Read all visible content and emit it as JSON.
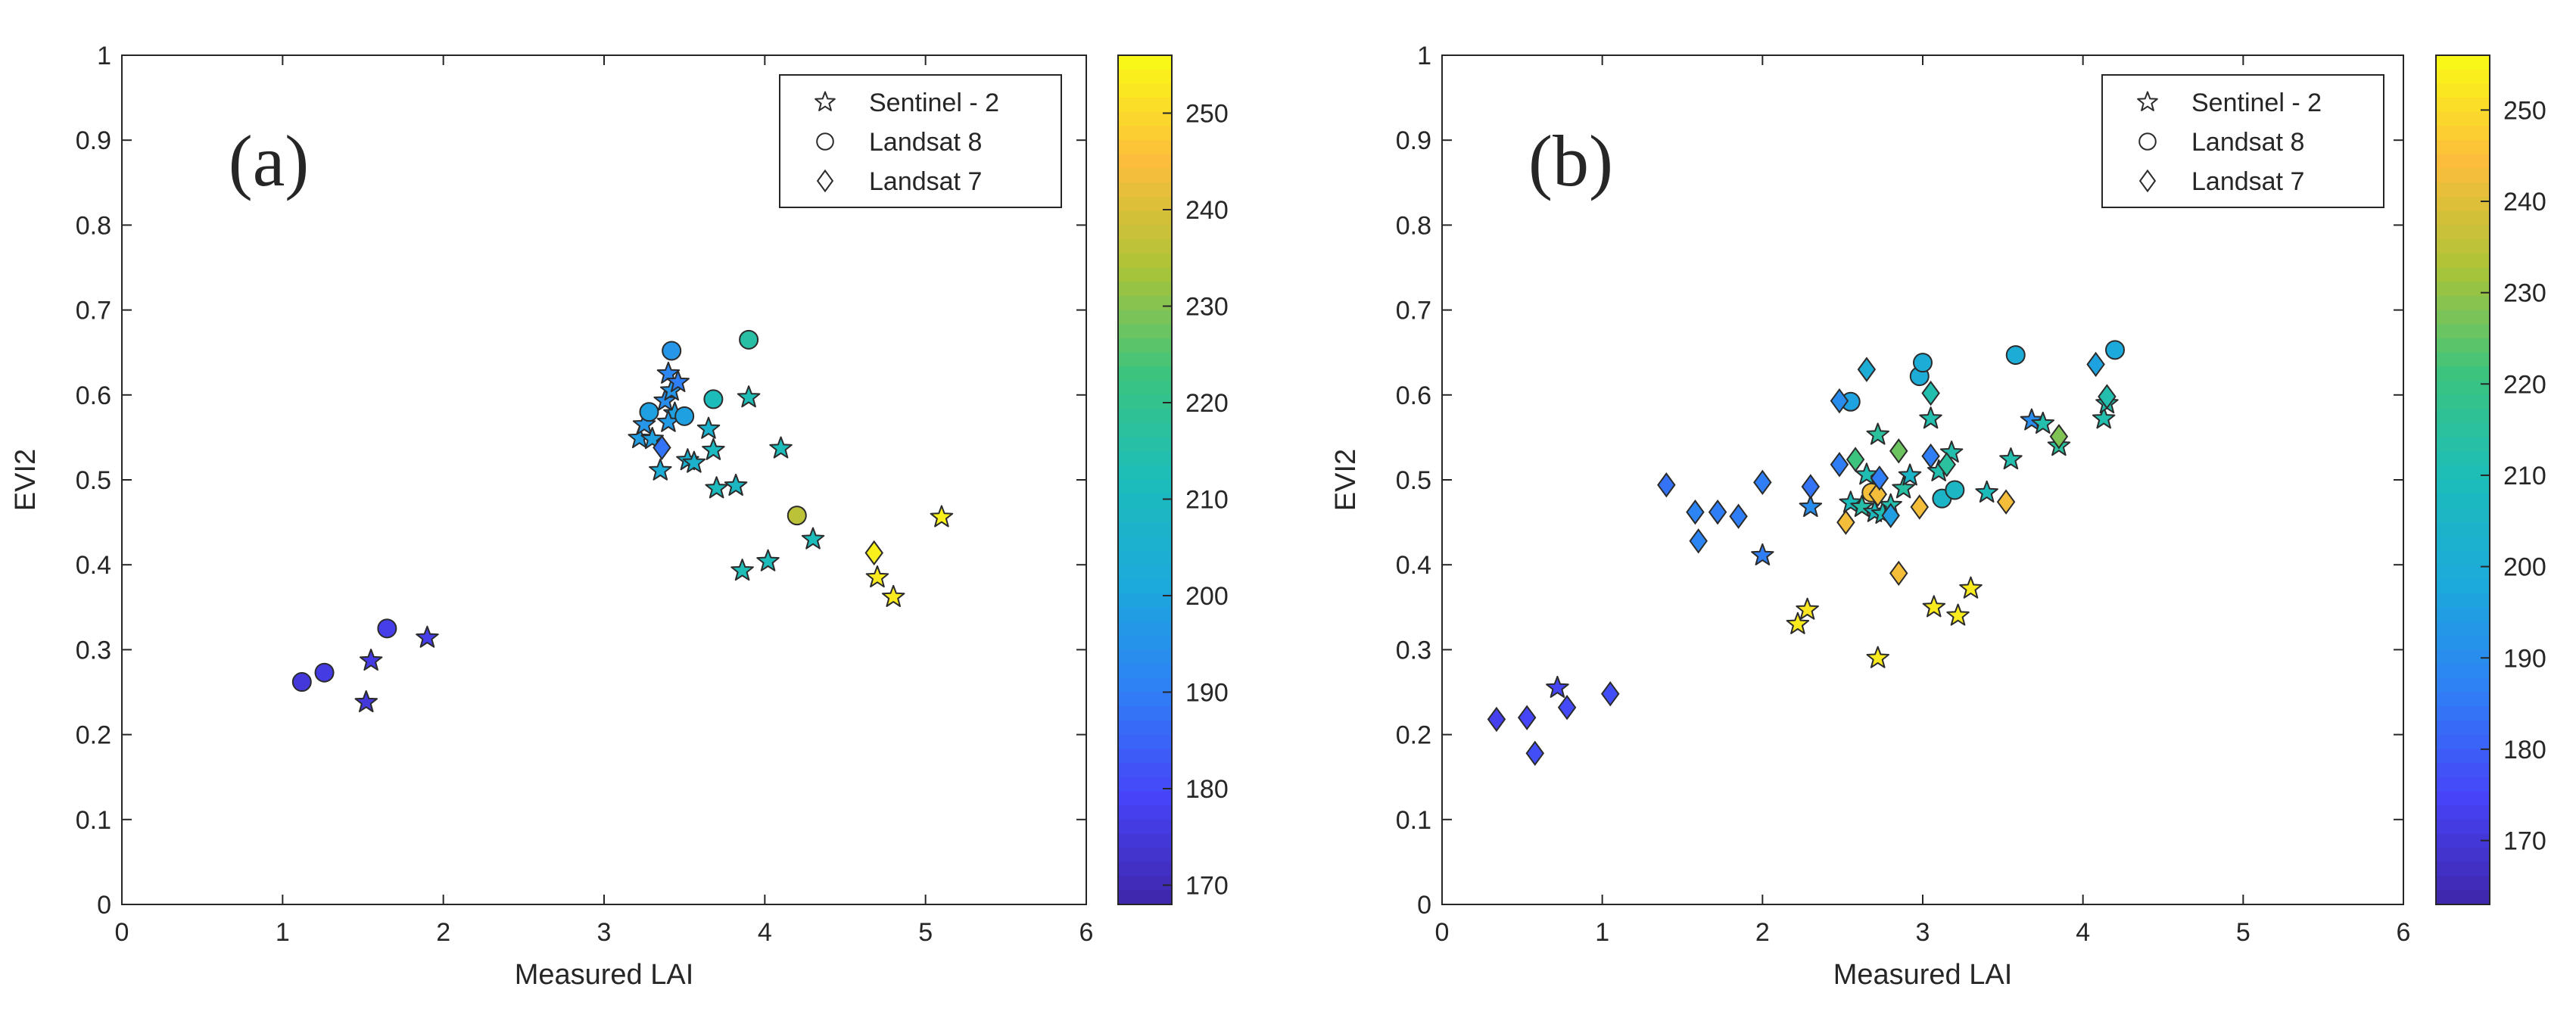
{
  "colors": {
    "colormap": [
      "#3e26a8",
      "#4743f8",
      "#2f7ff6",
      "#1ca9dc",
      "#1cbcba",
      "#3cc47e",
      "#aec337",
      "#fdbd3c",
      "#f9fb14"
    ],
    "marker_edge": "#2b2b2b",
    "axis": "#262626"
  },
  "chart_data": [
    {
      "type": "scatter",
      "panel_label": "(a)",
      "xlabel": "Measured LAI",
      "ylabel": "EVI2",
      "xlim": [
        0,
        6
      ],
      "ylim": [
        0,
        1
      ],
      "xticks": [
        "0",
        "1",
        "2",
        "3",
        "4",
        "5",
        "6"
      ],
      "yticks": [
        "0",
        "0.1",
        "0.2",
        "0.3",
        "0.4",
        "0.5",
        "0.6",
        "0.7",
        "0.8",
        "0.9",
        "1"
      ],
      "grid": false,
      "legend_position": "top-right",
      "colorbar": {
        "min": 168,
        "max": 256,
        "ticks": [
          "170",
          "180",
          "190",
          "200",
          "210",
          "220",
          "230",
          "240",
          "250"
        ]
      },
      "series": [
        {
          "name": "Sentinel - 2",
          "marker": "star",
          "points": [
            [
              1.52,
              0.238,
              175
            ],
            [
              1.55,
              0.287,
              176
            ],
            [
              1.9,
              0.314,
              177
            ],
            [
              3.22,
              0.549,
              198
            ],
            [
              3.25,
              0.565,
              196
            ],
            [
              3.3,
              0.548,
              199
            ],
            [
              3.35,
              0.511,
              203
            ],
            [
              3.38,
              0.593,
              194
            ],
            [
              3.4,
              0.625,
              192
            ],
            [
              3.42,
              0.605,
              196
            ],
            [
              3.44,
              0.578,
              199
            ],
            [
              3.46,
              0.615,
              190
            ],
            [
              3.4,
              0.568,
              197
            ],
            [
              3.52,
              0.523,
              205
            ],
            [
              3.56,
              0.52,
              206
            ],
            [
              3.65,
              0.56,
              206
            ],
            [
              3.68,
              0.535,
              210
            ],
            [
              3.7,
              0.49,
              211
            ],
            [
              3.82,
              0.493,
              209
            ],
            [
              3.9,
              0.597,
              213
            ],
            [
              3.86,
              0.393,
              213
            ],
            [
              4.02,
              0.404,
              212
            ],
            [
              4.1,
              0.537,
              212
            ],
            [
              4.3,
              0.43,
              212
            ],
            [
              4.7,
              0.385,
              253
            ],
            [
              4.8,
              0.362,
              253
            ],
            [
              5.1,
              0.456,
              254
            ]
          ]
        },
        {
          "name": "Landsat 8",
          "marker": "circle",
          "points": [
            [
              1.12,
              0.262,
              175
            ],
            [
              1.26,
              0.273,
              176
            ],
            [
              1.65,
              0.325,
              177
            ],
            [
              3.28,
              0.58,
              199
            ],
            [
              3.42,
              0.652,
              196
            ],
            [
              3.5,
              0.575,
              199
            ],
            [
              3.68,
              0.595,
              212
            ],
            [
              3.9,
              0.665,
              216
            ],
            [
              4.2,
              0.458,
              236
            ]
          ]
        },
        {
          "name": "Landsat 7",
          "marker": "diamond",
          "points": [
            [
              3.36,
              0.538,
              188
            ],
            [
              4.68,
              0.414,
              254
            ]
          ]
        }
      ]
    },
    {
      "type": "scatter",
      "panel_label": "(b)",
      "xlabel": "Measured LAI",
      "ylabel": "EVI2",
      "xlim": [
        0,
        6
      ],
      "ylim": [
        0,
        1
      ],
      "xticks": [
        "0",
        "1",
        "2",
        "3",
        "4",
        "5",
        "6"
      ],
      "yticks": [
        "0",
        "0.1",
        "0.2",
        "0.3",
        "0.4",
        "0.5",
        "0.6",
        "0.7",
        "0.8",
        "0.9",
        "1"
      ],
      "grid": false,
      "legend_position": "top-right",
      "colorbar": {
        "min": 163,
        "max": 256,
        "ticks": [
          "170",
          "180",
          "190",
          "200",
          "210",
          "220",
          "230",
          "240",
          "250"
        ]
      },
      "series": [
        {
          "name": "Sentinel - 2",
          "marker": "star",
          "points": [
            [
              0.72,
              0.255,
              175
            ],
            [
              2.0,
              0.411,
              186
            ],
            [
              2.3,
              0.468,
              190
            ],
            [
              2.22,
              0.33,
              253
            ],
            [
              2.28,
              0.347,
              252
            ],
            [
              2.55,
              0.473,
              209
            ],
            [
              2.62,
              0.468,
              213
            ],
            [
              2.65,
              0.506,
              211
            ],
            [
              2.7,
              0.462,
              208
            ],
            [
              2.72,
              0.553,
              215
            ],
            [
              2.75,
              0.46,
              210
            ],
            [
              2.8,
              0.47,
              212
            ],
            [
              2.88,
              0.49,
              214
            ],
            [
              2.92,
              0.505,
              205
            ],
            [
              2.72,
              0.29,
              253
            ],
            [
              3.05,
              0.572,
              212
            ],
            [
              3.1,
              0.51,
              212
            ],
            [
              3.18,
              0.532,
              212
            ],
            [
              3.07,
              0.35,
              253
            ],
            [
              3.22,
              0.34,
              253
            ],
            [
              3.3,
              0.372,
              253
            ],
            [
              3.4,
              0.485,
              209
            ],
            [
              3.55,
              0.524,
              212
            ],
            [
              3.68,
              0.57,
              190
            ],
            [
              3.75,
              0.566,
              212
            ],
            [
              3.85,
              0.54,
              215
            ],
            [
              4.13,
              0.572,
              212
            ],
            [
              4.15,
              0.59,
              212
            ]
          ]
        },
        {
          "name": "Landsat 8",
          "marker": "circle",
          "points": [
            [
              2.55,
              0.592,
              196
            ],
            [
              2.68,
              0.485,
              243
            ],
            [
              2.98,
              0.622,
              200
            ],
            [
              3.0,
              0.638,
              200
            ],
            [
              3.12,
              0.478,
              205
            ],
            [
              3.2,
              0.488,
              206
            ],
            [
              3.58,
              0.647,
              200
            ],
            [
              4.2,
              0.653,
              198
            ]
          ]
        },
        {
          "name": "Landsat 7",
          "marker": "diamond",
          "points": [
            [
              0.34,
              0.218,
              173
            ],
            [
              0.53,
              0.22,
              175
            ],
            [
              0.58,
              0.178,
              177
            ],
            [
              0.78,
              0.232,
              176
            ],
            [
              1.05,
              0.248,
              177
            ],
            [
              1.4,
              0.494,
              184
            ],
            [
              1.58,
              0.462,
              188
            ],
            [
              1.6,
              0.428,
              188
            ],
            [
              1.72,
              0.462,
              186
            ],
            [
              1.85,
              0.457,
              186
            ],
            [
              2.0,
              0.497,
              186
            ],
            [
              2.3,
              0.492,
              184
            ],
            [
              2.48,
              0.518,
              186
            ],
            [
              2.48,
              0.593,
              190
            ],
            [
              2.52,
              0.45,
              243
            ],
            [
              2.58,
              0.524,
              221
            ],
            [
              2.65,
              0.63,
              200
            ],
            [
              2.72,
              0.483,
              243
            ],
            [
              2.73,
              0.502,
              186
            ],
            [
              2.8,
              0.458,
              195
            ],
            [
              2.85,
              0.534,
              226
            ],
            [
              2.85,
              0.39,
              243
            ],
            [
              2.98,
              0.468,
              243
            ],
            [
              3.05,
              0.602,
              212
            ],
            [
              3.05,
              0.528,
              186
            ],
            [
              3.15,
              0.518,
              215
            ],
            [
              3.52,
              0.474,
              243
            ],
            [
              3.85,
              0.551,
              228
            ],
            [
              4.08,
              0.636,
              196
            ],
            [
              4.15,
              0.598,
              212
            ]
          ]
        }
      ]
    }
  ]
}
